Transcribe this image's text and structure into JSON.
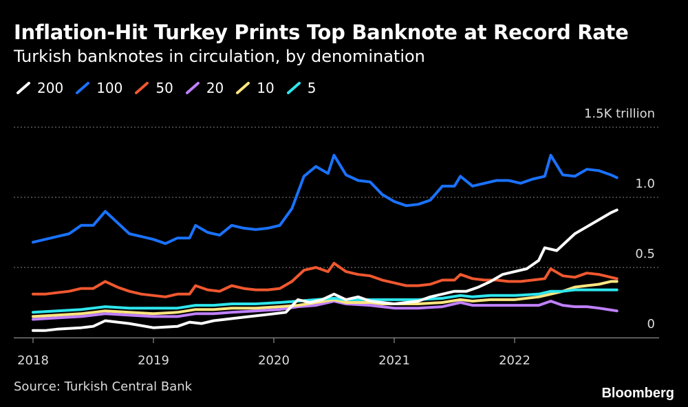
{
  "title": "Inflation-Hit Turkey Prints Top Banknote at Record Rate",
  "subtitle": "Turkish banknotes in circulation, by denomination",
  "source": "Source: Turkish Central Bank",
  "brand": "Bloomberg",
  "chart_data": {
    "type": "line",
    "xlim": [
      2018.0,
      2022.95
    ],
    "ylim": [
      0,
      1.5
    ],
    "y_ticks": [
      {
        "value": 0,
        "label": "0"
      },
      {
        "value": 0.5,
        "label": "0.5"
      },
      {
        "value": 1.0,
        "label": "1.0"
      },
      {
        "value": 1.5,
        "label": "1.5K trillion"
      }
    ],
    "x_ticks": [
      {
        "value": 2018,
        "label": "2018"
      },
      {
        "value": 2019,
        "label": "2019"
      },
      {
        "value": 2020,
        "label": "2020"
      },
      {
        "value": 2021,
        "label": "2021"
      },
      {
        "value": 2022,
        "label": "2022"
      }
    ],
    "grid": true,
    "legend_position": "top-left",
    "series": [
      {
        "name": "200",
        "color": "#ffffff",
        "points": [
          [
            2018.0,
            0.05
          ],
          [
            2018.1,
            0.05
          ],
          [
            2018.2,
            0.06
          ],
          [
            2018.4,
            0.07
          ],
          [
            2018.5,
            0.08
          ],
          [
            2018.6,
            0.12
          ],
          [
            2018.8,
            0.1
          ],
          [
            2019.0,
            0.07
          ],
          [
            2019.2,
            0.08
          ],
          [
            2019.3,
            0.11
          ],
          [
            2019.4,
            0.1
          ],
          [
            2019.5,
            0.12
          ],
          [
            2019.7,
            0.14
          ],
          [
            2019.9,
            0.16
          ],
          [
            2020.1,
            0.18
          ],
          [
            2020.2,
            0.27
          ],
          [
            2020.3,
            0.25
          ],
          [
            2020.4,
            0.27
          ],
          [
            2020.5,
            0.31
          ],
          [
            2020.6,
            0.27
          ],
          [
            2020.7,
            0.29
          ],
          [
            2020.8,
            0.26
          ],
          [
            2020.9,
            0.25
          ],
          [
            2021.0,
            0.24
          ],
          [
            2021.1,
            0.25
          ],
          [
            2021.2,
            0.26
          ],
          [
            2021.3,
            0.29
          ],
          [
            2021.4,
            0.31
          ],
          [
            2021.5,
            0.33
          ],
          [
            2021.6,
            0.33
          ],
          [
            2021.7,
            0.36
          ],
          [
            2021.8,
            0.4
          ],
          [
            2021.9,
            0.45
          ],
          [
            2022.0,
            0.47
          ],
          [
            2022.1,
            0.49
          ],
          [
            2022.2,
            0.55
          ],
          [
            2022.25,
            0.64
          ],
          [
            2022.35,
            0.62
          ],
          [
            2022.5,
            0.74
          ],
          [
            2022.6,
            0.79
          ],
          [
            2022.7,
            0.84
          ],
          [
            2022.8,
            0.89
          ],
          [
            2022.85,
            0.91
          ]
        ]
      },
      {
        "name": "100",
        "color": "#1a72ff",
        "points": [
          [
            2018.0,
            0.68
          ],
          [
            2018.1,
            0.7
          ],
          [
            2018.2,
            0.72
          ],
          [
            2018.3,
            0.74
          ],
          [
            2018.4,
            0.8
          ],
          [
            2018.5,
            0.8
          ],
          [
            2018.6,
            0.9
          ],
          [
            2018.7,
            0.82
          ],
          [
            2018.8,
            0.74
          ],
          [
            2018.9,
            0.72
          ],
          [
            2019.0,
            0.7
          ],
          [
            2019.1,
            0.67
          ],
          [
            2019.2,
            0.71
          ],
          [
            2019.3,
            0.71
          ],
          [
            2019.35,
            0.8
          ],
          [
            2019.45,
            0.75
          ],
          [
            2019.55,
            0.73
          ],
          [
            2019.65,
            0.8
          ],
          [
            2019.75,
            0.78
          ],
          [
            2019.85,
            0.77
          ],
          [
            2019.95,
            0.78
          ],
          [
            2020.05,
            0.8
          ],
          [
            2020.15,
            0.92
          ],
          [
            2020.25,
            1.15
          ],
          [
            2020.35,
            1.22
          ],
          [
            2020.45,
            1.17
          ],
          [
            2020.5,
            1.3
          ],
          [
            2020.6,
            1.16
          ],
          [
            2020.7,
            1.12
          ],
          [
            2020.8,
            1.11
          ],
          [
            2020.9,
            1.02
          ],
          [
            2021.0,
            0.97
          ],
          [
            2021.1,
            0.94
          ],
          [
            2021.2,
            0.95
          ],
          [
            2021.3,
            0.98
          ],
          [
            2021.4,
            1.08
          ],
          [
            2021.5,
            1.08
          ],
          [
            2021.55,
            1.15
          ],
          [
            2021.65,
            1.08
          ],
          [
            2021.75,
            1.1
          ],
          [
            2021.85,
            1.12
          ],
          [
            2021.95,
            1.12
          ],
          [
            2022.05,
            1.1
          ],
          [
            2022.15,
            1.13
          ],
          [
            2022.25,
            1.15
          ],
          [
            2022.3,
            1.3
          ],
          [
            2022.4,
            1.16
          ],
          [
            2022.5,
            1.15
          ],
          [
            2022.6,
            1.2
          ],
          [
            2022.7,
            1.19
          ],
          [
            2022.8,
            1.16
          ],
          [
            2022.85,
            1.14
          ]
        ]
      },
      {
        "name": "50",
        "color": "#f0582f",
        "points": [
          [
            2018.0,
            0.31
          ],
          [
            2018.1,
            0.31
          ],
          [
            2018.2,
            0.32
          ],
          [
            2018.3,
            0.33
          ],
          [
            2018.4,
            0.35
          ],
          [
            2018.5,
            0.35
          ],
          [
            2018.6,
            0.4
          ],
          [
            2018.7,
            0.36
          ],
          [
            2018.8,
            0.33
          ],
          [
            2018.9,
            0.31
          ],
          [
            2019.0,
            0.3
          ],
          [
            2019.1,
            0.29
          ],
          [
            2019.2,
            0.31
          ],
          [
            2019.3,
            0.31
          ],
          [
            2019.35,
            0.37
          ],
          [
            2019.45,
            0.34
          ],
          [
            2019.55,
            0.33
          ],
          [
            2019.65,
            0.37
          ],
          [
            2019.75,
            0.35
          ],
          [
            2019.85,
            0.34
          ],
          [
            2019.95,
            0.34
          ],
          [
            2020.05,
            0.35
          ],
          [
            2020.15,
            0.4
          ],
          [
            2020.25,
            0.48
          ],
          [
            2020.35,
            0.5
          ],
          [
            2020.45,
            0.47
          ],
          [
            2020.5,
            0.53
          ],
          [
            2020.6,
            0.47
          ],
          [
            2020.7,
            0.45
          ],
          [
            2020.8,
            0.44
          ],
          [
            2020.9,
            0.41
          ],
          [
            2021.0,
            0.39
          ],
          [
            2021.1,
            0.37
          ],
          [
            2021.2,
            0.37
          ],
          [
            2021.3,
            0.38
          ],
          [
            2021.4,
            0.41
          ],
          [
            2021.5,
            0.41
          ],
          [
            2021.55,
            0.45
          ],
          [
            2021.65,
            0.42
          ],
          [
            2021.75,
            0.41
          ],
          [
            2021.85,
            0.41
          ],
          [
            2021.95,
            0.4
          ],
          [
            2022.05,
            0.4
          ],
          [
            2022.15,
            0.41
          ],
          [
            2022.25,
            0.42
          ],
          [
            2022.3,
            0.49
          ],
          [
            2022.4,
            0.44
          ],
          [
            2022.5,
            0.43
          ],
          [
            2022.6,
            0.46
          ],
          [
            2022.7,
            0.45
          ],
          [
            2022.8,
            0.43
          ],
          [
            2022.85,
            0.42
          ]
        ]
      },
      {
        "name": "20",
        "color": "#c080ff",
        "points": [
          [
            2018.0,
            0.13
          ],
          [
            2018.2,
            0.14
          ],
          [
            2018.4,
            0.15
          ],
          [
            2018.5,
            0.16
          ],
          [
            2018.6,
            0.17
          ],
          [
            2018.8,
            0.16
          ],
          [
            2019.0,
            0.15
          ],
          [
            2019.2,
            0.15
          ],
          [
            2019.35,
            0.17
          ],
          [
            2019.5,
            0.17
          ],
          [
            2019.65,
            0.18
          ],
          [
            2019.85,
            0.19
          ],
          [
            2020.05,
            0.2
          ],
          [
            2020.2,
            0.22
          ],
          [
            2020.35,
            0.23
          ],
          [
            2020.5,
            0.26
          ],
          [
            2020.6,
            0.24
          ],
          [
            2020.8,
            0.23
          ],
          [
            2020.9,
            0.22
          ],
          [
            2021.0,
            0.21
          ],
          [
            2021.2,
            0.21
          ],
          [
            2021.4,
            0.22
          ],
          [
            2021.55,
            0.25
          ],
          [
            2021.65,
            0.23
          ],
          [
            2021.8,
            0.23
          ],
          [
            2022.0,
            0.23
          ],
          [
            2022.2,
            0.23
          ],
          [
            2022.3,
            0.26
          ],
          [
            2022.4,
            0.23
          ],
          [
            2022.5,
            0.22
          ],
          [
            2022.6,
            0.22
          ],
          [
            2022.7,
            0.21
          ],
          [
            2022.85,
            0.19
          ]
        ]
      },
      {
        "name": "10",
        "color": "#ffe680",
        "points": [
          [
            2018.0,
            0.15
          ],
          [
            2018.2,
            0.16
          ],
          [
            2018.4,
            0.17
          ],
          [
            2018.5,
            0.18
          ],
          [
            2018.6,
            0.19
          ],
          [
            2018.8,
            0.18
          ],
          [
            2019.0,
            0.17
          ],
          [
            2019.2,
            0.18
          ],
          [
            2019.35,
            0.2
          ],
          [
            2019.5,
            0.2
          ],
          [
            2019.65,
            0.21
          ],
          [
            2019.85,
            0.21
          ],
          [
            2020.05,
            0.22
          ],
          [
            2020.2,
            0.23
          ],
          [
            2020.35,
            0.25
          ],
          [
            2020.5,
            0.27
          ],
          [
            2020.6,
            0.25
          ],
          [
            2020.8,
            0.25
          ],
          [
            2020.9,
            0.24
          ],
          [
            2021.0,
            0.24
          ],
          [
            2021.2,
            0.24
          ],
          [
            2021.4,
            0.25
          ],
          [
            2021.55,
            0.27
          ],
          [
            2021.65,
            0.26
          ],
          [
            2021.8,
            0.27
          ],
          [
            2022.0,
            0.27
          ],
          [
            2022.2,
            0.29
          ],
          [
            2022.3,
            0.31
          ],
          [
            2022.4,
            0.33
          ],
          [
            2022.5,
            0.36
          ],
          [
            2022.6,
            0.37
          ],
          [
            2022.7,
            0.38
          ],
          [
            2022.8,
            0.4
          ],
          [
            2022.85,
            0.4
          ]
        ]
      },
      {
        "name": "5",
        "color": "#2ee6ee",
        "points": [
          [
            2018.0,
            0.18
          ],
          [
            2018.2,
            0.19
          ],
          [
            2018.4,
            0.2
          ],
          [
            2018.5,
            0.21
          ],
          [
            2018.6,
            0.22
          ],
          [
            2018.8,
            0.21
          ],
          [
            2019.0,
            0.21
          ],
          [
            2019.2,
            0.21
          ],
          [
            2019.35,
            0.23
          ],
          [
            2019.5,
            0.23
          ],
          [
            2019.65,
            0.24
          ],
          [
            2019.85,
            0.24
          ],
          [
            2020.05,
            0.25
          ],
          [
            2020.2,
            0.26
          ],
          [
            2020.35,
            0.27
          ],
          [
            2020.5,
            0.28
          ],
          [
            2020.6,
            0.27
          ],
          [
            2020.8,
            0.27
          ],
          [
            2020.9,
            0.27
          ],
          [
            2021.0,
            0.27
          ],
          [
            2021.2,
            0.27
          ],
          [
            2021.4,
            0.28
          ],
          [
            2021.55,
            0.3
          ],
          [
            2021.65,
            0.29
          ],
          [
            2021.8,
            0.3
          ],
          [
            2022.0,
            0.3
          ],
          [
            2022.2,
            0.31
          ],
          [
            2022.3,
            0.33
          ],
          [
            2022.4,
            0.33
          ],
          [
            2022.5,
            0.34
          ],
          [
            2022.6,
            0.34
          ],
          [
            2022.7,
            0.34
          ],
          [
            2022.85,
            0.34
          ]
        ]
      }
    ]
  }
}
